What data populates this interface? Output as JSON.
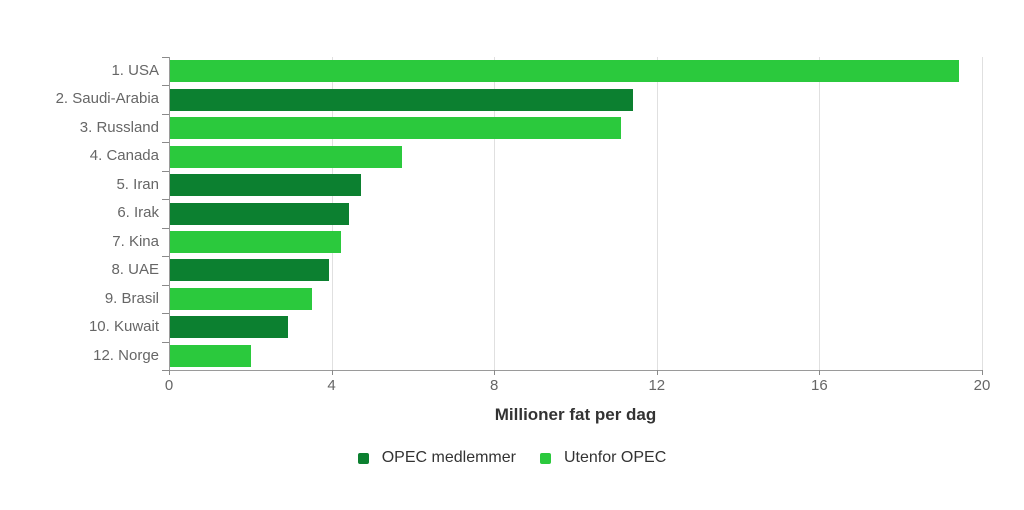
{
  "chart_data": {
    "type": "bar",
    "orientation": "horizontal",
    "title": "",
    "xlabel": "Millioner fat per dag",
    "ylabel": "",
    "xlim": [
      0,
      20
    ],
    "x_ticks": [
      0,
      4,
      8,
      12,
      16,
      20
    ],
    "grid": true,
    "legend_position": "bottom",
    "categories": [
      "1. USA",
      "2. Saudi-Arabia",
      "3. Russland",
      "4. Canada",
      "5. Iran",
      "6. Irak",
      "7. Kina",
      "8. UAE",
      "9. Brasil",
      "10. Kuwait",
      "12. Norge"
    ],
    "values": [
      19.4,
      11.4,
      11.1,
      5.7,
      4.7,
      4.4,
      4.2,
      3.9,
      3.5,
      2.9,
      2.0
    ],
    "bar_groups": [
      "utenfor",
      "opec",
      "utenfor",
      "utenfor",
      "opec",
      "opec",
      "utenfor",
      "opec",
      "utenfor",
      "opec",
      "utenfor"
    ],
    "groups": {
      "opec": {
        "label": "OPEC medlemmer",
        "color": "#0C8030"
      },
      "utenfor": {
        "label": "Utenfor OPEC",
        "color": "#2BC93D"
      }
    },
    "series": [
      {
        "name": "OPEC medlemmer",
        "color": "#0C8030",
        "categories": [
          "2. Saudi-Arabia",
          "5. Iran",
          "6. Irak",
          "8. UAE",
          "10. Kuwait"
        ],
        "values": [
          11.4,
          4.7,
          4.4,
          3.9,
          2.9
        ]
      },
      {
        "name": "Utenfor OPEC",
        "color": "#2BC93D",
        "categories": [
          "1. USA",
          "3. Russland",
          "4. Canada",
          "7. Kina",
          "9. Brasil",
          "12. Norge"
        ],
        "values": [
          19.4,
          11.1,
          5.7,
          4.2,
          3.5,
          2.0
        ]
      }
    ],
    "legend": [
      {
        "key": "opec",
        "label": "OPEC medlemmer",
        "color": "#0C8030"
      },
      {
        "key": "utenfor",
        "label": "Utenfor OPEC",
        "color": "#2BC93D"
      }
    ],
    "colors": {
      "background": "#ffffff",
      "gridline": "#e0e0e0",
      "axis_line": "#9a9a9a",
      "tick_label": "#666666",
      "category_label": "#666666",
      "axis_title": "#333333",
      "legend_text": "#333333"
    }
  }
}
